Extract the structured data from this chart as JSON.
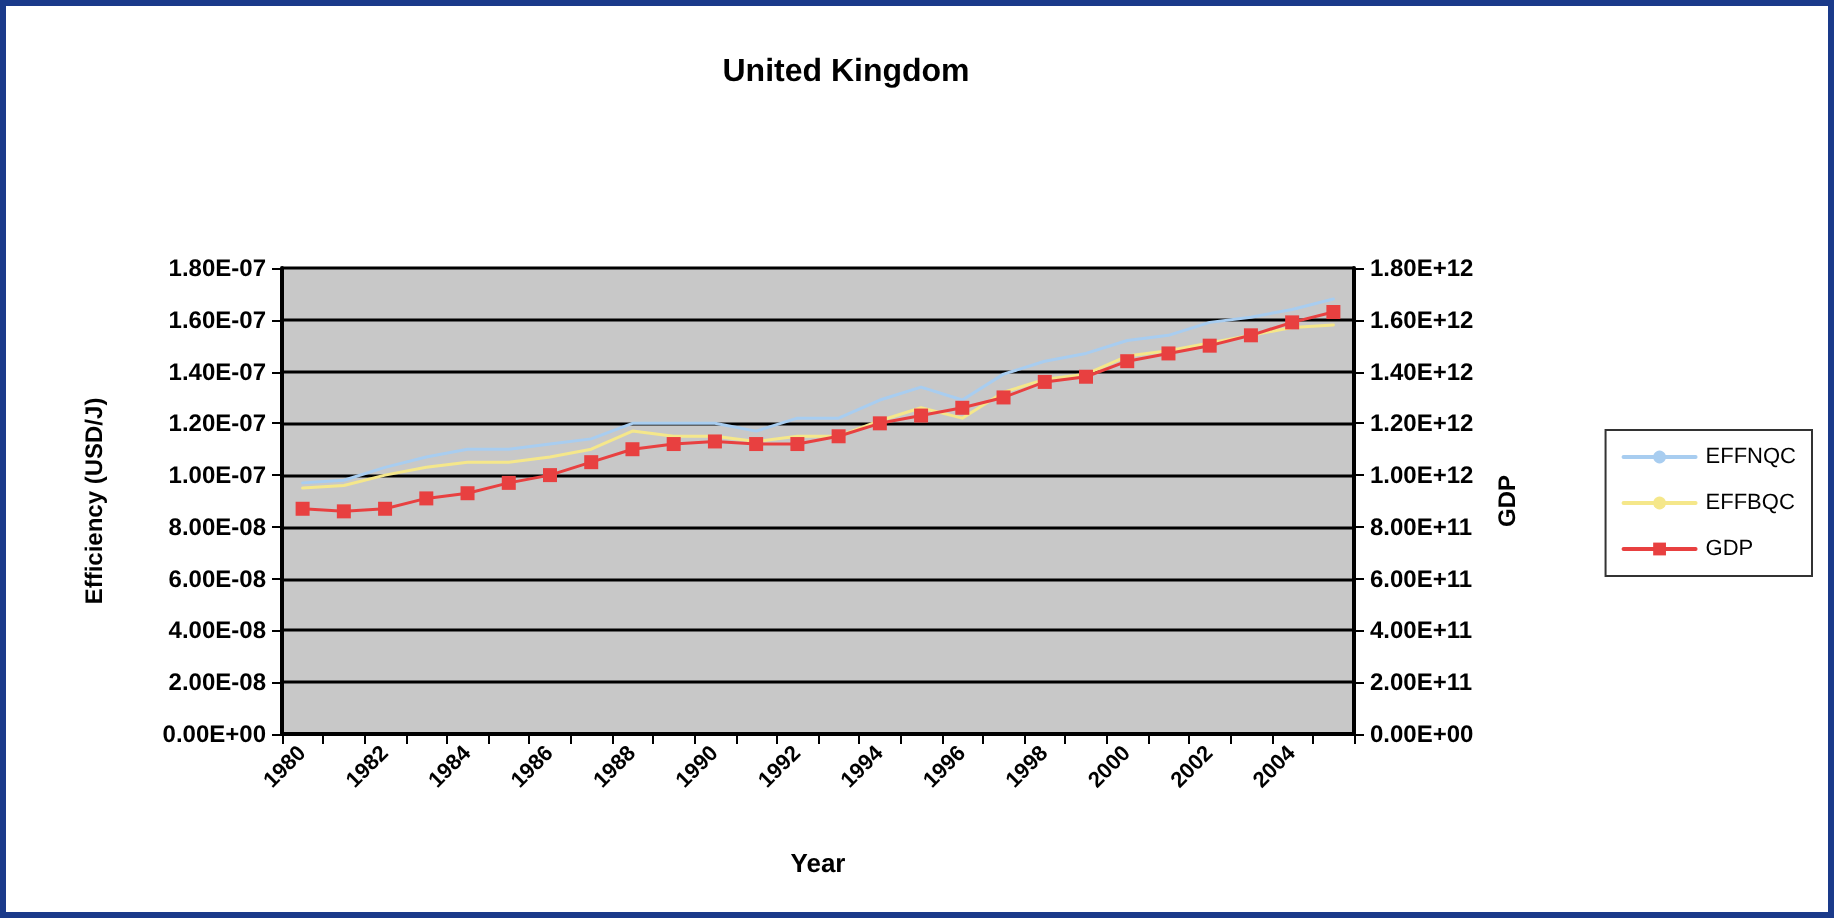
{
  "chart_data": {
    "type": "line",
    "title": "United Kingdom",
    "xlabel": "Year",
    "ylabel": "Efficiency (USD/J)",
    "y2label": "GDP",
    "categories": [
      "1980",
      null,
      "1982",
      null,
      "1984",
      null,
      "1986",
      null,
      "1988",
      null,
      "1990",
      null,
      "1992",
      null,
      "1994",
      null,
      "1996",
      null,
      "1998",
      null,
      "2000",
      null,
      "2002",
      null,
      "2004",
      null
    ],
    "series": [
      {
        "name": "EFFNQC",
        "color": "#a8cdf0",
        "marker": "none",
        "values": [
          9.7e-08,
          9.8e-08,
          1.03e-07,
          1.07e-07,
          1.1e-07,
          1.1e-07,
          1.12e-07,
          1.14e-07,
          1.2e-07,
          1.2e-07,
          1.2e-07,
          1.17e-07,
          1.22e-07,
          1.22e-07,
          1.29e-07,
          1.34e-07,
          1.29e-07,
          1.39e-07,
          1.44e-07,
          1.47e-07,
          1.52e-07,
          1.54e-07,
          1.59e-07,
          1.61e-07,
          1.64e-07,
          1.68e-07
        ]
      },
      {
        "name": "EFFBQC",
        "color": "#f5e78a",
        "marker": "none",
        "values": [
          9.5e-08,
          9.6e-08,
          1e-07,
          1.03e-07,
          1.05e-07,
          1.05e-07,
          1.07e-07,
          1.1e-07,
          1.17e-07,
          1.15e-07,
          1.15e-07,
          1.13e-07,
          1.15e-07,
          1.15e-07,
          1.21e-07,
          1.26e-07,
          1.22e-07,
          1.32e-07,
          1.37e-07,
          1.39e-07,
          1.46e-07,
          1.48e-07,
          1.51e-07,
          1.54e-07,
          1.57e-07,
          1.58e-07
        ]
      },
      {
        "name": "GDP",
        "color": "#e84040",
        "marker": "square",
        "axis": "y2",
        "values": [
          870000000000.0,
          860000000000.0,
          870000000000.0,
          910000000000.0,
          930000000000.0,
          970000000000.0,
          1000000000000.0,
          1050000000000.0,
          1100000000000.0,
          1120000000000.0,
          1130000000000.0,
          1120000000000.0,
          1120000000000.0,
          1150000000000.0,
          1200000000000.0,
          1230000000000.0,
          1260000000000.0,
          1300000000000.0,
          1360000000000.0,
          1380000000000.0,
          1440000000000.0,
          1470000000000.0,
          1500000000000.0,
          1540000000000.0,
          1590000000000.0,
          1630000000000.0
        ]
      }
    ],
    "ylim": [
      0,
      1.8e-07
    ],
    "yticks": [
      {
        "value": 0,
        "label": "0.00E+00"
      },
      {
        "value": 2e-08,
        "label": "2.00E-08"
      },
      {
        "value": 4e-08,
        "label": "4.00E-08"
      },
      {
        "value": 6e-08,
        "label": "6.00E-08"
      },
      {
        "value": 8e-08,
        "label": "8.00E-08"
      },
      {
        "value": 1e-07,
        "label": "1.00E-07"
      },
      {
        "value": 1.2e-07,
        "label": "1.20E-07"
      },
      {
        "value": 1.4e-07,
        "label": "1.40E-07"
      },
      {
        "value": 1.6e-07,
        "label": "1.60E-07"
      },
      {
        "value": 1.8e-07,
        "label": "1.80E-07"
      }
    ],
    "y2lim": [
      0,
      1800000000000.0
    ],
    "y2ticks": [
      {
        "value": 0,
        "label": "0.00E+00"
      },
      {
        "value": 200000000000.0,
        "label": "2.00E+11"
      },
      {
        "value": 400000000000.0,
        "label": "4.00E+11"
      },
      {
        "value": 600000000000.0,
        "label": "6.00E+11"
      },
      {
        "value": 800000000000.0,
        "label": "8.00E+11"
      },
      {
        "value": 1000000000000.0,
        "label": "1.00E+12"
      },
      {
        "value": 1200000000000.0,
        "label": "1.20E+12"
      },
      {
        "value": 1400000000000.0,
        "label": "1.40E+12"
      },
      {
        "value": 1600000000000.0,
        "label": "1.60E+12"
      },
      {
        "value": 1800000000000.0,
        "label": "1.80E+12"
      }
    ],
    "grid": "y",
    "legend": "right"
  }
}
